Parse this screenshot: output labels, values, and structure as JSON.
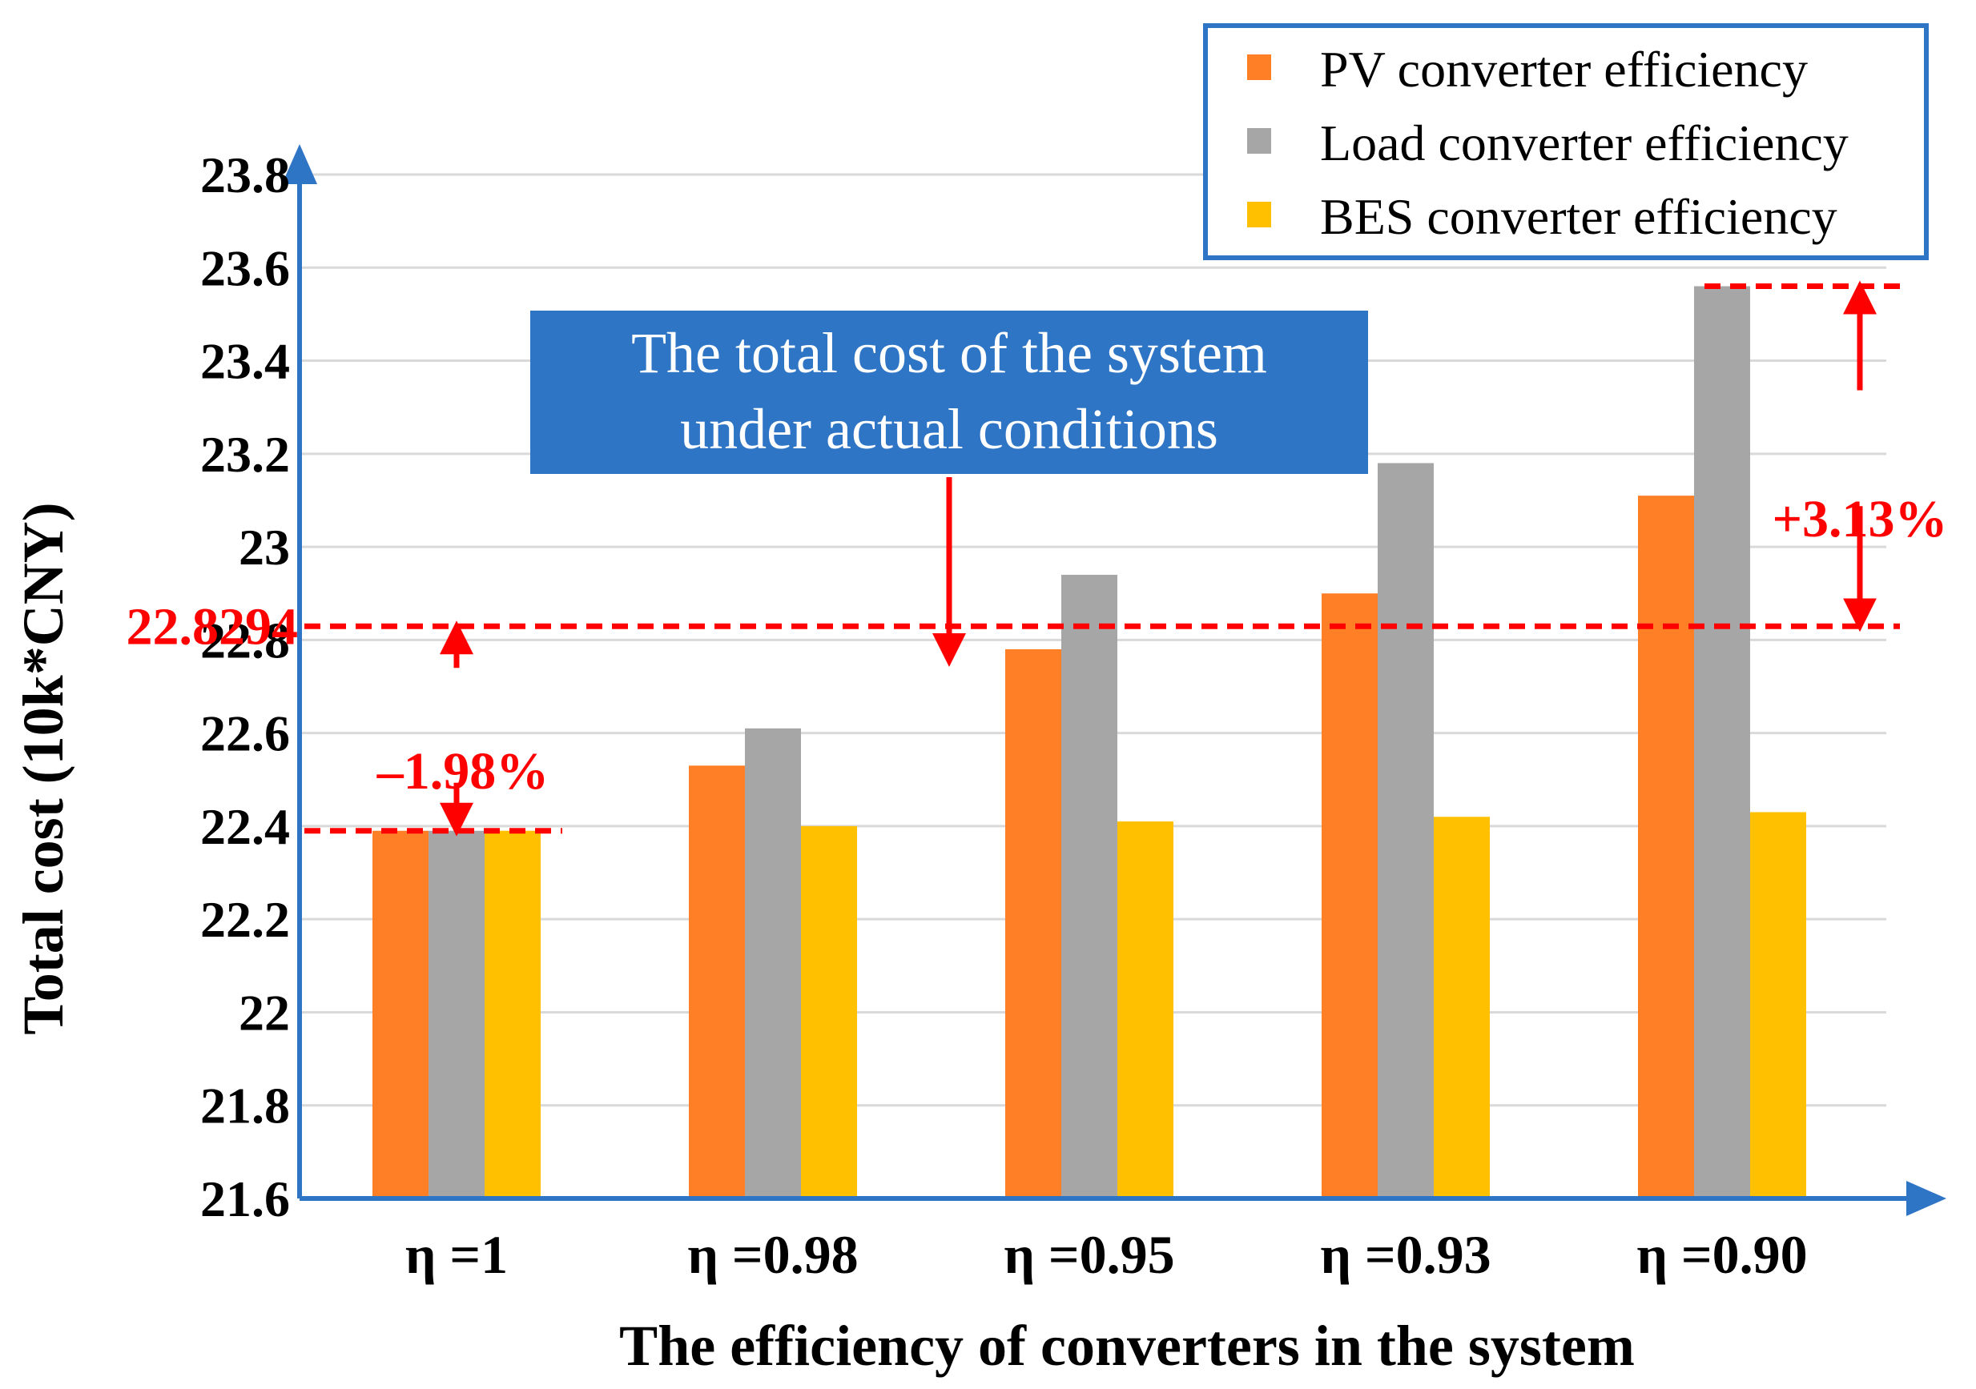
{
  "chart_data": {
    "type": "bar",
    "xlabel": "The efficiency of converters in the system",
    "ylabel": "Total cost (10k*CNY)",
    "categories": [
      "η =1",
      "η =0.98",
      "η =0.95",
      "η =0.93",
      "η =0.90"
    ],
    "series": [
      {
        "name": "PV converter efficiency",
        "color": "#FF7F27",
        "values": [
          22.39,
          22.53,
          22.78,
          22.9,
          23.11
        ]
      },
      {
        "name": "Load converter efficiency",
        "color": "#A6A6A6",
        "values": [
          22.39,
          22.61,
          22.94,
          23.18,
          23.56
        ]
      },
      {
        "name": "BES converter efficiency",
        "color": "#FFC000",
        "values": [
          22.39,
          22.4,
          22.41,
          22.42,
          22.43
        ]
      }
    ],
    "yticks": [
      "21.6",
      "21.8",
      "22",
      "22.2",
      "22.4",
      "22.6",
      "22.8",
      "23",
      "23.2",
      "23.4",
      "23.6",
      "23.8"
    ],
    "ylim": [
      21.6,
      23.8
    ],
    "grid": true,
    "legend_position": "top-right",
    "reference_lines": [
      {
        "value": 22.8294,
        "label": "22.8294",
        "color": "#FF0000"
      },
      {
        "value": 22.39,
        "label": "",
        "color": "#FF0000"
      },
      {
        "value": 23.56,
        "label": "",
        "color": "#FF0000"
      }
    ],
    "annotations": {
      "callout": [
        "The total cost of the system",
        "under actual conditions"
      ],
      "decrease": "–1.98%",
      "increase": "+3.13%"
    },
    "colors": {
      "axis": "#2E75C6",
      "grid": "#D9D9D9",
      "callout_bg": "#2E75C6",
      "annotation": "#FF0000",
      "legend_border": "#2E75C6"
    }
  }
}
